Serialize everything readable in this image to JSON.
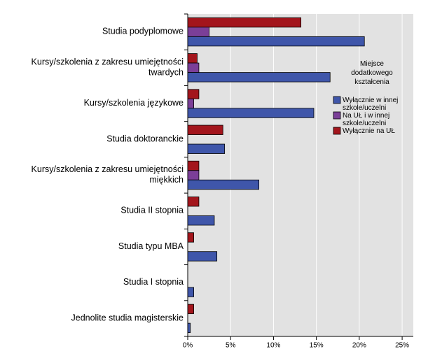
{
  "chart_data": {
    "type": "hbar",
    "categories": [
      "Studia podyplomowe",
      "Kursy/szkolenia z zakresu umiejętności twardych",
      "Kursy/szkolenia językowe",
      "Studia doktoranckie",
      "Kursy/szkolenia z zakresu umiejętności miękkich",
      "Studia II stopnia",
      "Studia typu MBA",
      "Studia I stopnia",
      "Jednolite studia magisterskie"
    ],
    "series": [
      {
        "name": "Wyłącznie na UŁ",
        "color": "#a3151c",
        "values": [
          13.2,
          1.1,
          1.3,
          4.1,
          1.3,
          1.3,
          0.7,
          0,
          0.7
        ]
      },
      {
        "name": "Na UŁ i w innej szkole/uczelni",
        "color": "#7b3f98",
        "values": [
          2.5,
          1.3,
          0.7,
          0,
          1.3,
          0,
          0,
          0,
          0
        ]
      },
      {
        "name": "Wyłącznie w innej szkole/uczelni",
        "color": "#3f56aa",
        "values": [
          20.6,
          16.6,
          14.7,
          4.3,
          8.3,
          3.1,
          3.4,
          0.7,
          0.3
        ]
      }
    ],
    "legend_title": "Miejsce dodatkowego kształcenia",
    "legend_order": [
      2,
      1,
      0
    ],
    "xlim": [
      0,
      26.3
    ],
    "xticks": [
      {
        "value": 0,
        "label": "0%"
      },
      {
        "value": 5,
        "label": "5%"
      },
      {
        "value": 10,
        "label": "10%"
      },
      {
        "value": 15,
        "label": "15%"
      },
      {
        "value": 20,
        "label": "20%"
      },
      {
        "value": 25,
        "label": "25%"
      }
    ],
    "grid": true
  }
}
